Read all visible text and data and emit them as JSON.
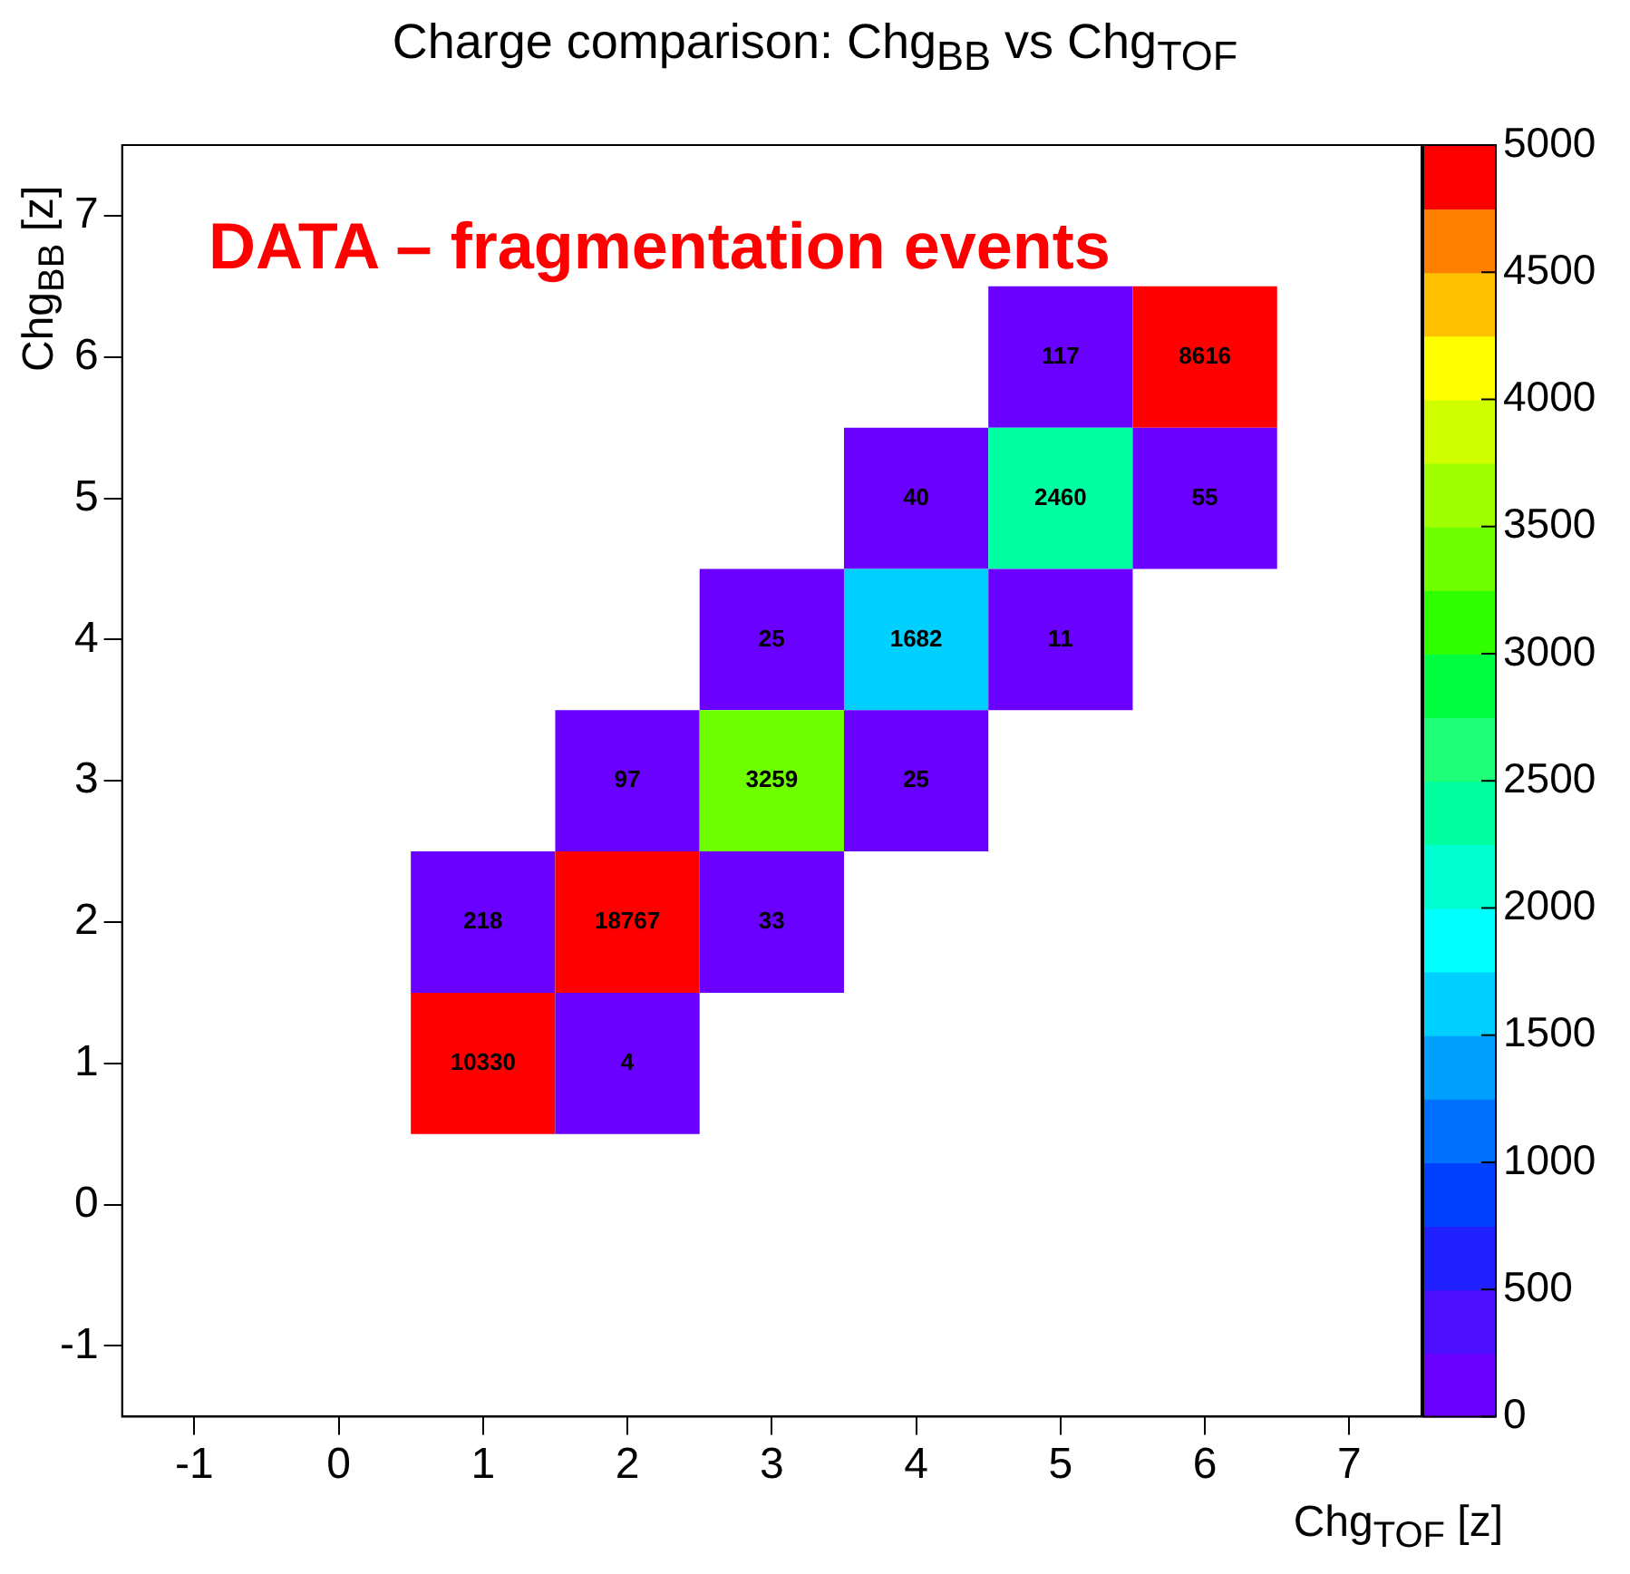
{
  "chart_data": {
    "type": "heatmap",
    "title": "Charge comparison: Chg$_{BB}$ vs Chg$_{TOF}$",
    "xlabel": "Chg$_{TOF}$ [z]",
    "ylabel": "Chg$_{BB}$ [z]",
    "annotations": [
      "DATA – fragmentation events"
    ],
    "categories": [
      "-1",
      "0",
      "1",
      "2",
      "3",
      "4",
      "5",
      "6",
      "7"
    ],
    "y_categories": [
      "7",
      "6",
      "5",
      "4",
      "3",
      "2",
      "1",
      "0",
      "-1"
    ],
    "cells": [
      [
        null,
        null,
        null,
        null,
        null,
        null,
        null,
        null,
        null
      ],
      [
        null,
        null,
        null,
        null,
        null,
        null,
        117,
        8616,
        null
      ],
      [
        null,
        null,
        null,
        null,
        null,
        40,
        2460,
        55,
        null
      ],
      [
        null,
        null,
        null,
        null,
        25,
        1682,
        11,
        null,
        null
      ],
      [
        null,
        null,
        null,
        97,
        3259,
        25,
        null,
        null,
        null
      ],
      [
        null,
        null,
        218,
        18767,
        33,
        null,
        null,
        null,
        null
      ],
      [
        null,
        null,
        10330,
        4,
        null,
        null,
        null,
        null,
        null
      ],
      [
        null,
        null,
        null,
        null,
        null,
        null,
        null,
        null,
        null
      ],
      [
        null,
        null,
        null,
        null,
        null,
        null,
        null,
        null,
        null
      ]
    ],
    "clim": [
      0,
      5000
    ],
    "cticks": [
      0,
      500,
      1000,
      1500,
      2000,
      2500,
      3000,
      3500,
      4000,
      4500,
      5000
    ],
    "data_labels": true,
    "grid": false
  }
}
